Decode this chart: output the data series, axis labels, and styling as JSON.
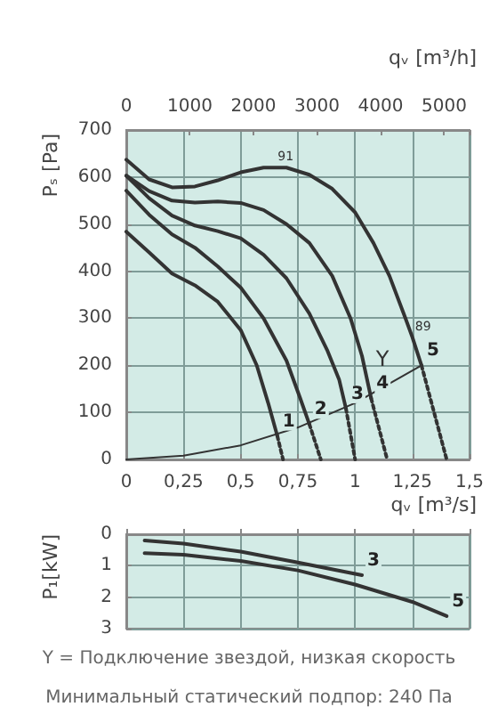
{
  "chart_data": [
    {
      "type": "line",
      "x2label": "qᵥ [m³/h]",
      "xlabel": "qᵥ [m³/s]",
      "ylabel": "Pₛ [Pa]",
      "xlim": [
        0,
        1.5
      ],
      "xticks": [
        0,
        {
          "value": 0.25,
          "label": "0,25"
        },
        {
          "value": 0.5,
          "label": "0,5"
        },
        {
          "value": 0.75,
          "label": "0,75"
        },
        1,
        {
          "value": 1.25,
          "label": "1,25"
        },
        {
          "value": 1.5,
          "label": "1,5"
        }
      ],
      "x2lim": [
        0,
        5400
      ],
      "x2ticks": [
        0,
        1000,
        2000,
        3000,
        4000,
        5000
      ],
      "ylim": [
        0,
        700
      ],
      "yticks": [
        0,
        100,
        200,
        300,
        400,
        500,
        600,
        700
      ],
      "grid": true,
      "marker": "none",
      "series": [
        {
          "name": "1",
          "color": "#333333",
          "x": [
            0,
            0.1,
            0.2,
            0.3,
            0.4,
            0.5,
            0.57,
            0.62,
            0.66
          ],
          "values": [
            484,
            440,
            395,
            370,
            335,
            275,
            200,
            120,
            50
          ]
        },
        {
          "name": "2",
          "color": "#333333",
          "x": [
            0,
            0.1,
            0.2,
            0.3,
            0.4,
            0.5,
            0.6,
            0.7,
            0.76,
            0.8
          ],
          "values": [
            571,
            520,
            478,
            450,
            410,
            365,
            300,
            210,
            130,
            75
          ]
        },
        {
          "name": "3",
          "color": "#333333",
          "x": [
            0,
            0.1,
            0.2,
            0.3,
            0.4,
            0.5,
            0.6,
            0.7,
            0.8,
            0.88,
            0.93,
            0.96
          ],
          "values": [
            603,
            555,
            518,
            497,
            485,
            470,
            435,
            385,
            310,
            230,
            170,
            108
          ]
        },
        {
          "name": "4",
          "color": "#333333",
          "x": [
            0,
            0.1,
            0.2,
            0.3,
            0.4,
            0.5,
            0.6,
            0.7,
            0.8,
            0.9,
            0.98,
            1.03,
            1.07
          ],
          "values": [
            603,
            570,
            550,
            546,
            548,
            545,
            530,
            500,
            460,
            390,
            300,
            220,
            130
          ]
        },
        {
          "name": "5",
          "color": "#333333",
          "x": [
            0,
            0.1,
            0.2,
            0.3,
            0.4,
            0.5,
            0.6,
            0.7,
            0.8,
            0.9,
            1.0,
            1.08,
            1.15,
            1.22,
            1.25,
            1.29
          ],
          "values": [
            637,
            595,
            578,
            580,
            593,
            610,
            620,
            620,
            605,
            575,
            525,
            460,
            390,
            300,
            260,
            200
          ]
        },
        {
          "color": "#333333",
          "line_style": "dotted",
          "x": [
            0.66,
            0.685
          ],
          "values": [
            50,
            0
          ]
        },
        {
          "color": "#333333",
          "line_style": "dotted",
          "x": [
            0.8,
            0.85
          ],
          "values": [
            75,
            0
          ]
        },
        {
          "color": "#333333",
          "line_style": "dotted",
          "x": [
            0.96,
            1.0
          ],
          "values": [
            108,
            0
          ]
        },
        {
          "color": "#333333",
          "line_style": "dotted",
          "x": [
            1.07,
            1.14
          ],
          "values": [
            130,
            0
          ]
        },
        {
          "color": "#333333",
          "line_style": "dotted",
          "x": [
            1.29,
            1.4
          ],
          "values": [
            200,
            0
          ]
        },
        {
          "color": "#333333",
          "x": [
            0,
            0.25,
            0.5,
            0.75,
            1,
            1.29
          ],
          "values": [
            0,
            8,
            30,
            68,
            120,
            200
          ]
        }
      ],
      "annotations": [
        {
          "text": "91",
          "x": 0.65,
          "y": 620
        },
        {
          "text": "89",
          "x": 1.25,
          "y": 260
        },
        {
          "text": "Y",
          "x": 1.12,
          "y": 150
        }
      ]
    },
    {
      "type": "line",
      "ylabel": "P₁[kW]",
      "xlim": [
        0,
        1.5
      ],
      "xticks": [
        0,
        0.25,
        0.5,
        0.75,
        1,
        1.25,
        1.5
      ],
      "tick_labels": "y",
      "ylim": [
        3,
        0
      ],
      "yticks": [
        0,
        1,
        2,
        3
      ],
      "grid": true,
      "marker": "none",
      "series": [
        {
          "name": "3",
          "color": "#333333",
          "x": [
            0.08,
            0.25,
            0.5,
            0.75,
            1.03
          ],
          "values": [
            0.2,
            0.3,
            0.55,
            0.9,
            1.3
          ]
        },
        {
          "name": "5",
          "color": "#333333",
          "x": [
            0.08,
            0.25,
            0.5,
            0.75,
            1.0,
            1.25,
            1.4
          ],
          "values": [
            0.6,
            0.65,
            0.85,
            1.15,
            1.6,
            2.15,
            2.6
          ]
        }
      ],
      "annotations": [
        "Y = Подключение звездой, низкая скорость",
        "Минимальный статический подпор: 240 Па"
      ]
    }
  ]
}
